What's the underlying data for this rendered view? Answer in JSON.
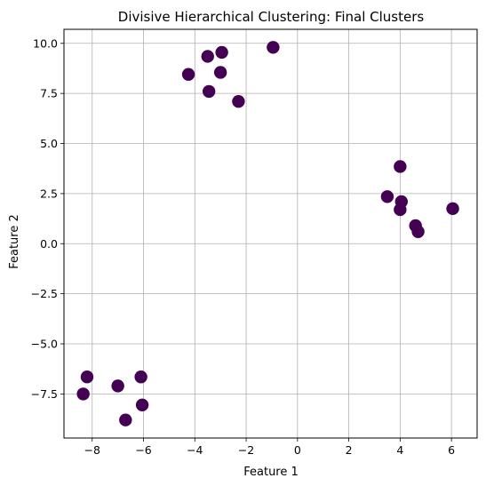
{
  "chart_data": {
    "type": "scatter",
    "title": "Divisive Hierarchical Clustering: Final Clusters",
    "xlabel": "Feature 1",
    "ylabel": "Feature 2",
    "xlim": [
      -9.1,
      7.0
    ],
    "ylim": [
      -9.7,
      10.7
    ],
    "xticks": [
      -8,
      -6,
      -4,
      -2,
      0,
      2,
      4,
      6
    ],
    "yticks": [
      -7.5,
      -5.0,
      -2.5,
      0.0,
      2.5,
      5.0,
      7.5,
      10.0
    ],
    "xtick_labels": [
      "−8",
      "−6",
      "−4",
      "−2",
      "0",
      "2",
      "4",
      "6"
    ],
    "ytick_labels": [
      "−7.5",
      "−5.0",
      "−2.5",
      "0.0",
      "2.5",
      "5.0",
      "7.5",
      "10.0"
    ],
    "grid": true,
    "legend": null,
    "marker_color": "#440154",
    "points": [
      {
        "x": -3.5,
        "y": 9.35
      },
      {
        "x": -2.95,
        "y": 9.55
      },
      {
        "x": -0.95,
        "y": 9.8
      },
      {
        "x": -4.25,
        "y": 8.45
      },
      {
        "x": -3.0,
        "y": 8.55
      },
      {
        "x": -3.45,
        "y": 7.6
      },
      {
        "x": -2.3,
        "y": 7.1
      },
      {
        "x": 4.0,
        "y": 3.85
      },
      {
        "x": 3.5,
        "y": 2.35
      },
      {
        "x": 4.05,
        "y": 2.1
      },
      {
        "x": 4.0,
        "y": 1.7
      },
      {
        "x": 6.05,
        "y": 1.75
      },
      {
        "x": 4.6,
        "y": 0.9
      },
      {
        "x": 4.7,
        "y": 0.6
      },
      {
        "x": -8.2,
        "y": -6.65
      },
      {
        "x": -6.1,
        "y": -6.65
      },
      {
        "x": -7.0,
        "y": -7.1
      },
      {
        "x": -8.35,
        "y": -7.5
      },
      {
        "x": -6.05,
        "y": -8.05
      },
      {
        "x": -6.7,
        "y": -8.8
      }
    ]
  }
}
